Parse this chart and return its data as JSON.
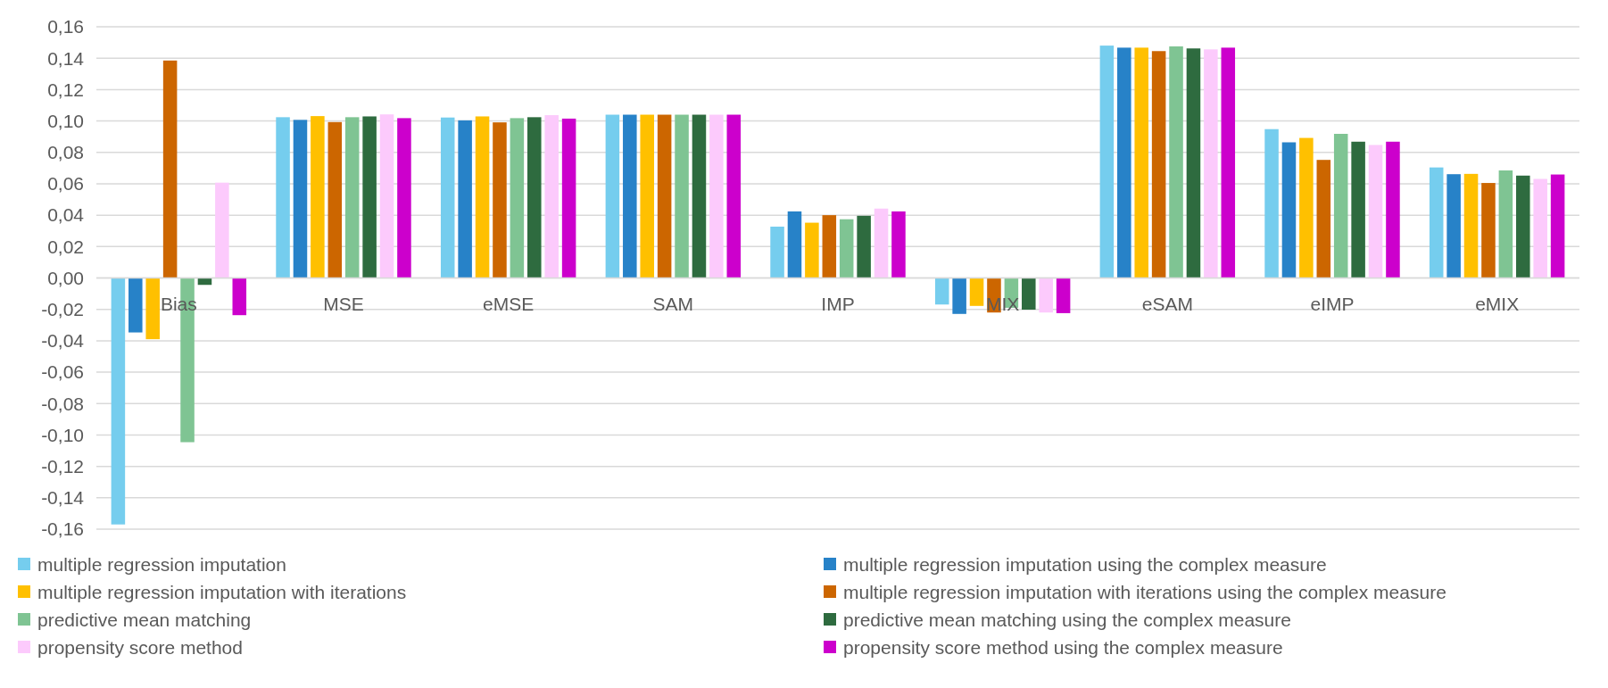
{
  "chart_data": {
    "type": "bar",
    "categories": [
      "Bias",
      "MSE",
      "eMSE",
      "SAM",
      "IMP",
      "MIX",
      "eSAM",
      "eIMP",
      "eMIX"
    ],
    "series": [
      {
        "name": "multiple regression imputation",
        "color": "#75cdee",
        "values": [
          -0.157,
          0.1024,
          0.1022,
          0.104,
          0.0327,
          -0.0169,
          0.148,
          0.0948,
          0.0704
        ]
      },
      {
        "name": "multiple regression imputation using the complex measure",
        "color": "#2782c8",
        "values": [
          -0.0347,
          0.1007,
          0.1004,
          0.104,
          0.0424,
          -0.0229,
          0.1467,
          0.0864,
          0.0661
        ]
      },
      {
        "name": "multiple regression imputation with iterations",
        "color": "#ffc000",
        "values": [
          -0.039,
          0.1031,
          0.1029,
          0.104,
          0.0352,
          -0.0178,
          0.1467,
          0.0892,
          0.0663
        ]
      },
      {
        "name": "multiple regression imputation with iterations using the complex measure",
        "color": "#cc6600",
        "values": [
          0.1385,
          0.0993,
          0.0991,
          0.104,
          0.04,
          -0.022,
          0.1445,
          0.0752,
          0.0605
        ]
      },
      {
        "name": "predictive mean matching",
        "color": "#7fc493",
        "values": [
          -0.1046,
          0.1024,
          0.1018,
          0.104,
          0.0374,
          -0.019,
          0.1475,
          0.0918,
          0.0685
        ]
      },
      {
        "name": "predictive mean matching using the complex measure",
        "color": "#2e6b3f",
        "values": [
          -0.0044,
          0.1029,
          0.1024,
          0.104,
          0.0396,
          -0.0202,
          0.1462,
          0.0868,
          0.0652
        ]
      },
      {
        "name": "propensity score method",
        "color": "#fccafc",
        "values": [
          0.0607,
          0.1042,
          0.1037,
          0.104,
          0.0442,
          -0.022,
          0.1456,
          0.0847,
          0.0631
        ]
      },
      {
        "name": "propensity score method using the complex measure",
        "color": "#cc00cc",
        "values": [
          -0.0237,
          0.1018,
          0.1015,
          0.104,
          0.0424,
          -0.0224,
          0.1467,
          0.0868,
          0.0659
        ]
      }
    ],
    "ylim": [
      -0.16,
      0.16
    ],
    "yticks": [
      {
        "value": -0.16,
        "label": "-0,16"
      },
      {
        "value": -0.14,
        "label": "-0,14"
      },
      {
        "value": -0.12,
        "label": "-0,12"
      },
      {
        "value": -0.1,
        "label": "-0,10"
      },
      {
        "value": -0.08,
        "label": "-0,08"
      },
      {
        "value": -0.06,
        "label": "-0,06"
      },
      {
        "value": -0.04,
        "label": "-0,04"
      },
      {
        "value": -0.02,
        "label": "-0,02"
      },
      {
        "value": 0,
        "label": "0,00"
      },
      {
        "value": 0.02,
        "label": "0,02"
      },
      {
        "value": 0.04,
        "label": "0,04"
      },
      {
        "value": 0.06,
        "label": "0,06"
      },
      {
        "value": 0.08,
        "label": "0,08"
      },
      {
        "value": 0.1,
        "label": "0,10"
      },
      {
        "value": 0.12,
        "label": "0,12"
      },
      {
        "value": 0.14,
        "label": "0,14"
      },
      {
        "value": 0.16,
        "label": "0,16"
      }
    ],
    "grid": "y",
    "legend": "bottom"
  }
}
